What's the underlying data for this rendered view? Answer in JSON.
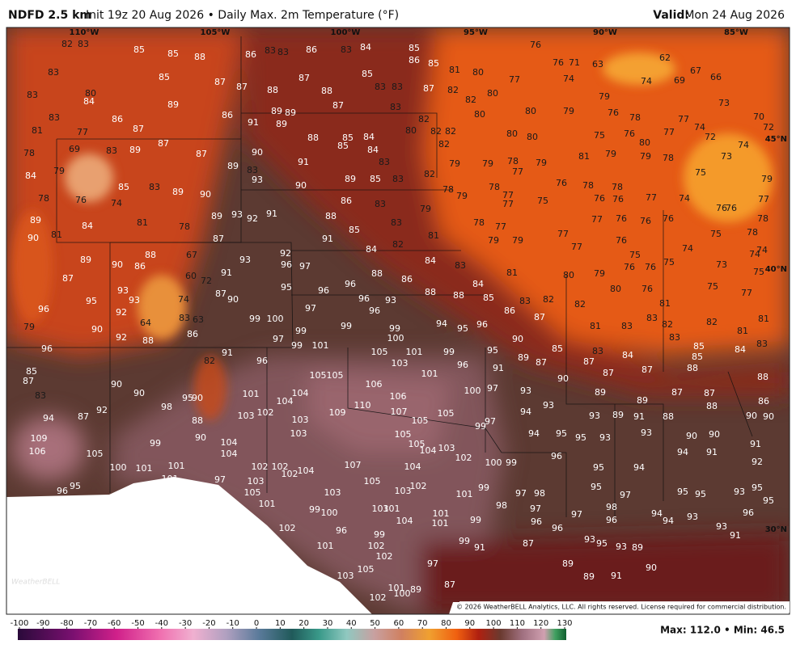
{
  "header": {
    "title": "NDFD 2.5 km",
    "subtitle": "Init 19z 20 Aug 2026 • Daily Max. 2m Temperature (°F)",
    "valid_label": "Valid:",
    "valid_date": "Mon 24 Aug 2026"
  },
  "map": {
    "lon_labels": [
      "110°W",
      "105°W",
      "100°W",
      "95°W",
      "90°W",
      "85°W"
    ],
    "lat_labels": [
      "45°N",
      "40°N",
      "30°N"
    ],
    "temperatures": [
      82,
      83,
      85,
      85,
      88,
      86,
      83,
      83,
      86,
      83,
      84,
      85,
      86,
      85,
      81,
      80,
      77,
      76,
      76,
      71,
      63,
      62,
      67,
      69,
      66,
      74,
      74,
      83,
      85,
      87,
      87,
      88,
      87,
      88,
      85,
      83,
      83,
      87,
      82,
      82,
      80,
      83,
      80,
      84,
      89,
      79,
      73,
      83,
      86,
      86,
      91,
      89,
      89,
      89,
      87,
      83,
      82,
      80,
      80,
      79,
      76,
      78,
      77,
      70,
      74,
      72,
      72,
      81,
      77,
      87,
      88,
      85,
      84,
      80,
      82,
      82,
      80,
      80,
      75,
      76,
      77,
      80,
      74,
      78,
      69,
      83,
      89,
      87,
      87,
      90,
      85,
      84,
      82,
      81,
      79,
      79,
      78,
      73,
      89,
      83,
      91,
      83,
      79,
      79,
      78,
      79,
      77,
      75,
      84,
      79,
      93,
      89,
      85,
      83,
      82,
      79,
      85,
      83,
      89,
      90,
      90,
      78,
      79,
      78,
      77,
      76,
      78,
      78,
      78,
      76,
      74,
      86,
      83,
      75,
      76,
      76,
      77,
      74,
      77,
      79,
      77,
      76,
      76,
      89,
      84,
      81,
      78,
      89,
      93,
      92,
      91,
      88,
      83,
      78,
      77,
      77,
      76,
      76,
      76,
      78,
      90,
      81,
      87,
      91,
      85,
      81,
      79,
      79,
      77,
      76,
      75,
      78,
      89,
      90,
      86,
      88,
      67,
      93,
      92,
      96,
      97,
      84,
      82,
      84,
      83,
      77,
      75,
      75,
      74,
      73,
      74,
      74,
      87,
      60,
      72,
      91,
      81,
      80,
      79,
      76,
      76,
      75,
      93,
      95,
      96,
      96,
      88,
      86,
      88,
      88,
      84,
      85,
      80,
      76,
      75,
      77,
      96,
      95,
      93,
      74,
      87,
      90,
      97,
      96,
      93,
      96,
      86,
      83,
      82,
      82,
      81,
      92,
      83,
      63,
      99,
      100,
      87,
      83,
      82,
      81,
      79,
      90,
      64,
      86,
      99,
      99,
      99,
      94,
      95,
      96,
      81,
      83,
      82,
      81,
      92,
      88,
      97,
      100,
      90,
      83,
      83,
      96,
      99,
      101,
      105,
      101,
      99,
      95,
      91,
      85,
      83,
      85,
      84,
      96,
      82,
      103,
      96,
      91,
      89,
      87,
      84,
      85,
      87,
      85,
      87,
      105,
      105,
      101,
      87,
      87,
      88,
      88,
      90,
      106,
      90,
      83,
      90,
      95,
      90,
      101,
      104,
      104,
      106,
      100,
      97,
      93,
      89,
      89,
      87,
      87,
      86,
      110,
      98,
      93,
      88,
      94,
      87,
      92,
      88,
      103,
      102,
      103,
      109,
      107,
      105,
      105,
      99,
      97,
      94,
      93,
      89,
      91,
      88,
      90,
      90,
      103,
      105,
      94,
      95,
      95,
      93,
      93,
      90,
      90,
      109,
      106,
      90,
      104,
      104,
      105,
      104,
      103,
      91,
      105,
      99,
      102,
      96,
      94,
      91,
      92,
      100,
      101,
      101,
      101,
      97,
      102,
      102,
      102,
      104,
      107,
      104,
      100,
      99,
      95,
      94,
      95,
      96,
      103,
      105,
      101,
      103,
      105,
      103,
      102,
      101,
      99,
      97,
      98,
      95,
      97,
      95,
      95,
      93,
      95,
      95,
      96,
      99,
      100,
      103,
      101,
      101,
      104,
      101,
      99,
      98,
      97,
      97,
      98,
      96,
      94,
      94,
      93,
      96,
      102,
      96,
      99,
      96,
      96,
      93,
      91,
      101,
      102,
      102,
      99,
      91,
      87,
      93,
      95,
      93,
      89,
      103,
      105,
      97,
      89,
      89,
      91,
      90,
      101,
      100,
      89,
      87,
      102
    ],
    "logo": "WeatherBELL",
    "copyright": "© 2026 WeatherBELL Analytics, LLC. All rights reserved. License required for commercial distribution."
  },
  "colorbar": {
    "ticks": [
      -100,
      -90,
      -80,
      -70,
      -60,
      -50,
      -40,
      -30,
      -20,
      -10,
      0,
      10,
      20,
      30,
      40,
      50,
      60,
      70,
      80,
      90,
      100,
      110,
      120,
      130
    ]
  },
  "footer": {
    "stats": "Max: 112.0 • Min: 46.5"
  }
}
